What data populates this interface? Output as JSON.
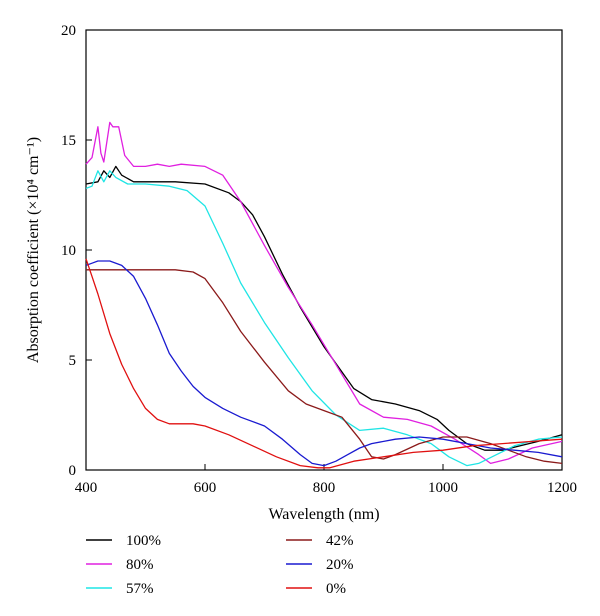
{
  "chart_data": {
    "type": "line",
    "title": "",
    "xlabel": "Wavelength (nm)",
    "ylabel": "Absorption coefficient (×10⁴ cm⁻¹)",
    "xlim": [
      400,
      1200
    ],
    "ylim": [
      0,
      20
    ],
    "xticks": [
      400,
      600,
      800,
      1000,
      1200
    ],
    "yticks": [
      0,
      5,
      10,
      15,
      20
    ],
    "grid": false,
    "legend_position": "bottom",
    "series": [
      {
        "name": "100%",
        "color": "#000000",
        "x": [
          400,
          420,
          430,
          440,
          450,
          460,
          480,
          500,
          550,
          600,
          640,
          660,
          680,
          700,
          730,
          760,
          800,
          850,
          880,
          920,
          960,
          990,
          1010,
          1040,
          1070,
          1100,
          1130,
          1160,
          1200
        ],
        "y": [
          13.0,
          13.1,
          13.6,
          13.3,
          13.8,
          13.4,
          13.1,
          13.1,
          13.1,
          13.0,
          12.6,
          12.2,
          11.6,
          10.6,
          8.9,
          7.4,
          5.6,
          3.7,
          3.2,
          3.0,
          2.7,
          2.3,
          1.8,
          1.2,
          0.9,
          0.9,
          1.1,
          1.3,
          1.6
        ]
      },
      {
        "name": "80%",
        "color": "#e020e0",
        "x": [
          400,
          410,
          420,
          425,
          430,
          440,
          445,
          455,
          465,
          480,
          500,
          520,
          540,
          560,
          600,
          630,
          660,
          700,
          740,
          780,
          820,
          860,
          900,
          940,
          980,
          1020,
          1060,
          1080,
          1110,
          1150,
          1200
        ],
        "y": [
          13.9,
          14.2,
          15.6,
          14.4,
          14.0,
          15.8,
          15.6,
          15.6,
          14.3,
          13.8,
          13.8,
          13.9,
          13.8,
          13.9,
          13.8,
          13.4,
          12.2,
          10.2,
          8.3,
          6.6,
          4.8,
          3.0,
          2.4,
          2.3,
          2.0,
          1.4,
          0.7,
          0.3,
          0.5,
          1.0,
          1.3
        ]
      },
      {
        "name": "57%",
        "color": "#1fe5e5",
        "x": [
          400,
          410,
          420,
          430,
          440,
          450,
          470,
          500,
          540,
          570,
          600,
          630,
          660,
          700,
          740,
          780,
          820,
          860,
          900,
          940,
          980,
          1010,
          1040,
          1060,
          1090,
          1120,
          1160,
          1200
        ],
        "y": [
          12.8,
          12.9,
          13.6,
          13.1,
          13.6,
          13.3,
          13.0,
          13.0,
          12.9,
          12.7,
          12.0,
          10.3,
          8.5,
          6.7,
          5.1,
          3.6,
          2.5,
          1.8,
          1.9,
          1.6,
          1.2,
          0.6,
          0.2,
          0.3,
          0.7,
          1.1,
          1.4,
          1.5
        ]
      },
      {
        "name": "42%",
        "color": "#8b1a1a",
        "x": [
          400,
          420,
          450,
          500,
          550,
          580,
          600,
          630,
          660,
          700,
          740,
          770,
          800,
          830,
          860,
          880,
          900,
          920,
          960,
          1000,
          1040,
          1080,
          1110,
          1140,
          1170,
          1200
        ],
        "y": [
          9.1,
          9.1,
          9.1,
          9.1,
          9.1,
          9.0,
          8.7,
          7.6,
          6.3,
          4.9,
          3.6,
          3.0,
          2.7,
          2.4,
          1.4,
          0.6,
          0.5,
          0.7,
          1.2,
          1.5,
          1.5,
          1.2,
          0.9,
          0.6,
          0.4,
          0.3
        ]
      },
      {
        "name": "20%",
        "color": "#1a1ad0",
        "x": [
          400,
          410,
          420,
          440,
          460,
          480,
          500,
          520,
          540,
          560,
          580,
          600,
          630,
          660,
          700,
          730,
          760,
          780,
          800,
          820,
          840,
          860,
          880,
          920,
          960,
          1000,
          1040,
          1080,
          1120,
          1160,
          1200
        ],
        "y": [
          9.3,
          9.4,
          9.5,
          9.5,
          9.3,
          8.8,
          7.8,
          6.6,
          5.3,
          4.5,
          3.8,
          3.3,
          2.8,
          2.4,
          2.0,
          1.4,
          0.7,
          0.3,
          0.2,
          0.4,
          0.7,
          1.0,
          1.2,
          1.4,
          1.5,
          1.4,
          1.2,
          1.0,
          0.9,
          0.8,
          0.6
        ]
      },
      {
        "name": "0%",
        "color": "#e01010",
        "x": [
          400,
          405,
          410,
          420,
          440,
          460,
          480,
          500,
          520,
          540,
          560,
          580,
          600,
          640,
          680,
          720,
          760,
          790,
          810,
          850,
          900,
          950,
          1000,
          1050,
          1100,
          1150,
          1200
        ],
        "y": [
          9.6,
          9.2,
          8.8,
          8.0,
          6.2,
          4.8,
          3.7,
          2.8,
          2.3,
          2.1,
          2.1,
          2.1,
          2.0,
          1.6,
          1.1,
          0.6,
          0.2,
          0.1,
          0.1,
          0.4,
          0.6,
          0.8,
          0.9,
          1.1,
          1.2,
          1.3,
          1.4
        ]
      }
    ]
  }
}
